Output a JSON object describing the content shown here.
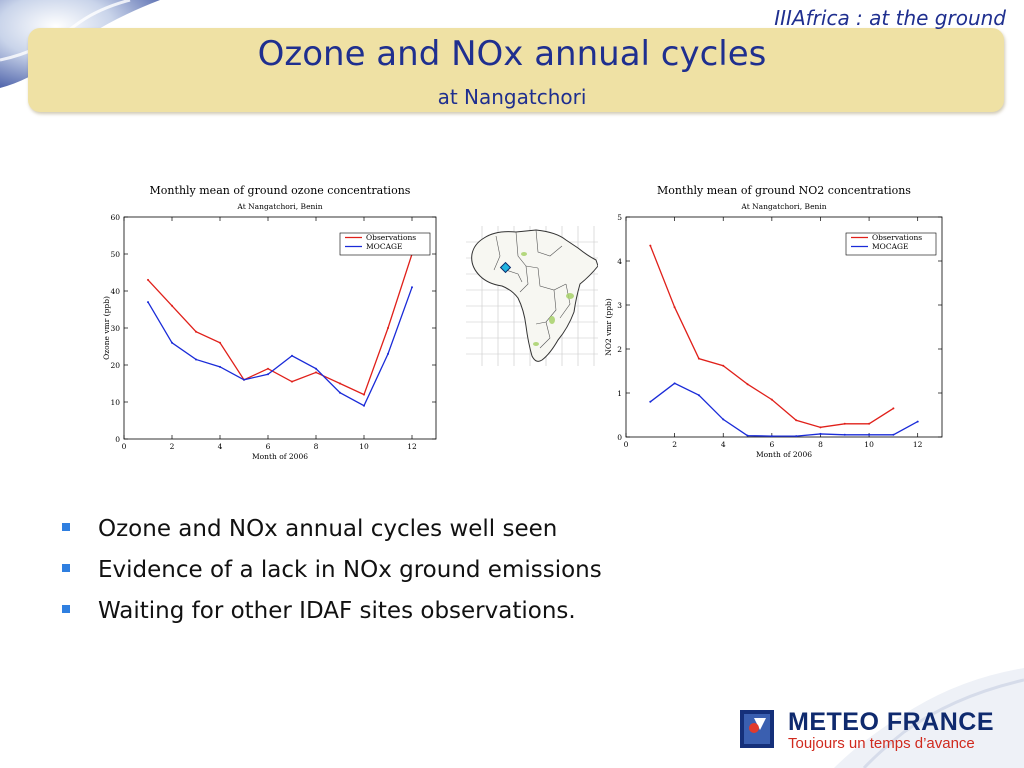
{
  "header_tag": "IIIAfrica : at the ground",
  "title": "Ozone and NOx annual cycles",
  "subtitle": "at Nangatchori",
  "bullets": [
    "Ozone and NOx annual cycles well seen",
    "Evidence of a lack in NOx ground emissions",
    "Waiting for other IDAF sites observations."
  ],
  "logo": {
    "name": "METEO FRANCE",
    "slogan": "Toujours un temps d’avance"
  },
  "chart_data": [
    {
      "type": "line",
      "title": "Monthly mean of ground ozone concentrations",
      "subtitle": "At Nangatchori, Benin",
      "xlabel": "Month of 2006",
      "ylabel": "Ozone vmr (ppb)",
      "xlim": [
        0,
        13
      ],
      "ylim": [
        0,
        60
      ],
      "xticks": [
        0,
        2,
        4,
        6,
        8,
        10,
        12
      ],
      "yticks": [
        0,
        10,
        20,
        30,
        40,
        50,
        60
      ],
      "legend_position": "top-right",
      "series": [
        {
          "name": "Observations",
          "color": "#e0201a",
          "x": [
            1,
            2,
            3,
            4,
            5,
            6,
            7,
            8,
            9,
            10,
            11,
            12
          ],
          "values": [
            43,
            36,
            29,
            26,
            16,
            19,
            15.5,
            18,
            15,
            12,
            30,
            50
          ]
        },
        {
          "name": "MOCAGE",
          "color": "#1a2bd8",
          "x": [
            1,
            2,
            3,
            4,
            5,
            6,
            7,
            8,
            9,
            10,
            11,
            12
          ],
          "values": [
            37,
            26,
            21.5,
            19.5,
            16,
            17.5,
            22.5,
            19,
            12.5,
            9,
            23,
            41
          ]
        }
      ]
    },
    {
      "type": "line",
      "title": "Monthly mean of ground NO2 concentrations",
      "subtitle": "At Nangatchori, Benin",
      "xlabel": "Month of 2006",
      "ylabel": "NO2 vmr (ppb)",
      "xlim": [
        0,
        13
      ],
      "ylim": [
        0,
        5
      ],
      "xticks": [
        0,
        2,
        4,
        6,
        8,
        10,
        12
      ],
      "yticks": [
        0,
        1,
        2,
        3,
        4,
        5
      ],
      "legend_position": "top-right",
      "series": [
        {
          "name": "Observations",
          "color": "#e0201a",
          "x": [
            1,
            2,
            3,
            4,
            5,
            6,
            7,
            8,
            9,
            10,
            11
          ],
          "values": [
            4.35,
            2.95,
            1.78,
            1.62,
            1.2,
            0.85,
            0.38,
            0.22,
            0.3,
            0.3,
            0.65
          ]
        },
        {
          "name": "MOCAGE",
          "color": "#1a2bd8",
          "x": [
            1,
            2,
            3,
            4,
            5,
            6,
            7,
            8,
            9,
            10,
            11,
            12
          ],
          "values": [
            0.8,
            1.22,
            0.95,
            0.4,
            0.03,
            0.02,
            0.02,
            0.07,
            0.05,
            0.05,
            0.05,
            0.35
          ]
        }
      ]
    }
  ]
}
